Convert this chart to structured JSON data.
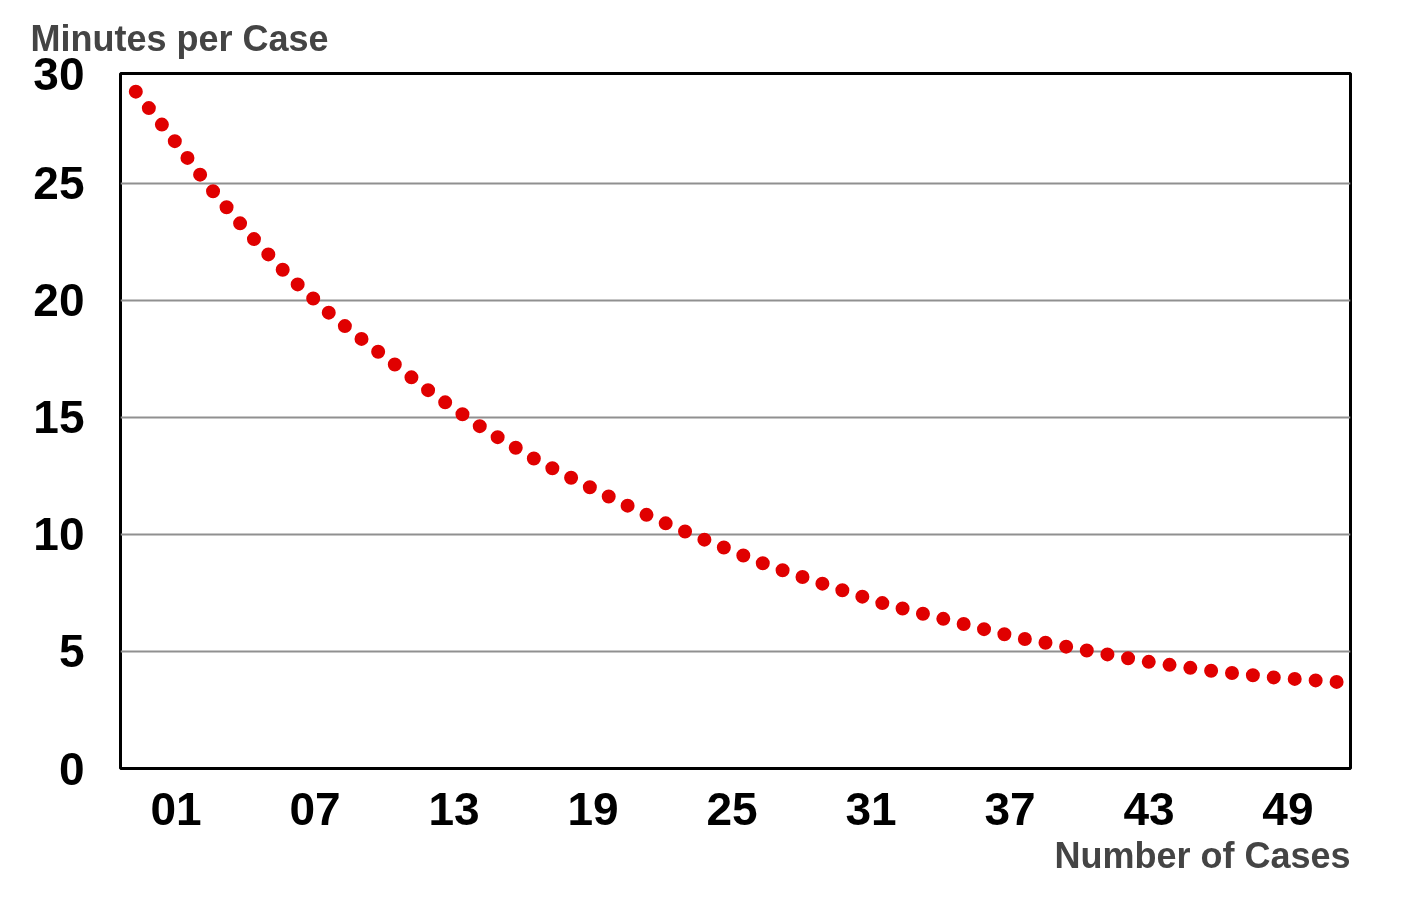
{
  "chart_data": {
    "type": "line",
    "xlabel": "Number of Cases",
    "ylabel": "Minutes per Case",
    "x": [
      -0.8,
      0.8,
      2.4,
      4.1,
      5.9,
      7.9,
      10.0,
      12.1,
      14.3,
      16.7,
      19.1,
      21.6,
      24.0,
      26.5,
      29.2,
      31.7,
      34.5,
      37.3,
      40.0,
      42.7,
      45.5,
      48.3,
      51.1
    ],
    "series": [
      {
        "color": "#e00000",
        "values": [
          29.0,
          27.0,
          24.9,
          22.9,
          21.0,
          19.2,
          17.6,
          16.0,
          14.5,
          13.1,
          11.9,
          10.7,
          9.7,
          8.7,
          7.8,
          7.0,
          6.3,
          5.6,
          5.1,
          4.6,
          4.2,
          3.9,
          3.7
        ]
      }
    ],
    "xlim": [
      -1.4,
      51.7
    ],
    "ylim": [
      0,
      29.7
    ],
    "xticks": [
      {
        "value": 1,
        "label": "01"
      },
      {
        "value": 7,
        "label": "07"
      },
      {
        "value": 13,
        "label": "13"
      },
      {
        "value": 19,
        "label": "19"
      },
      {
        "value": 25,
        "label": "25"
      },
      {
        "value": 31,
        "label": "31"
      },
      {
        "value": 37,
        "label": "37"
      },
      {
        "value": 43,
        "label": "43"
      },
      {
        "value": 49,
        "label": "49"
      }
    ],
    "yticks": [
      0,
      5,
      10,
      15,
      20,
      25,
      {
        "value": 29.7,
        "label": "30"
      }
    ],
    "grid": "y",
    "line_style": "dotted",
    "marker": "none"
  }
}
